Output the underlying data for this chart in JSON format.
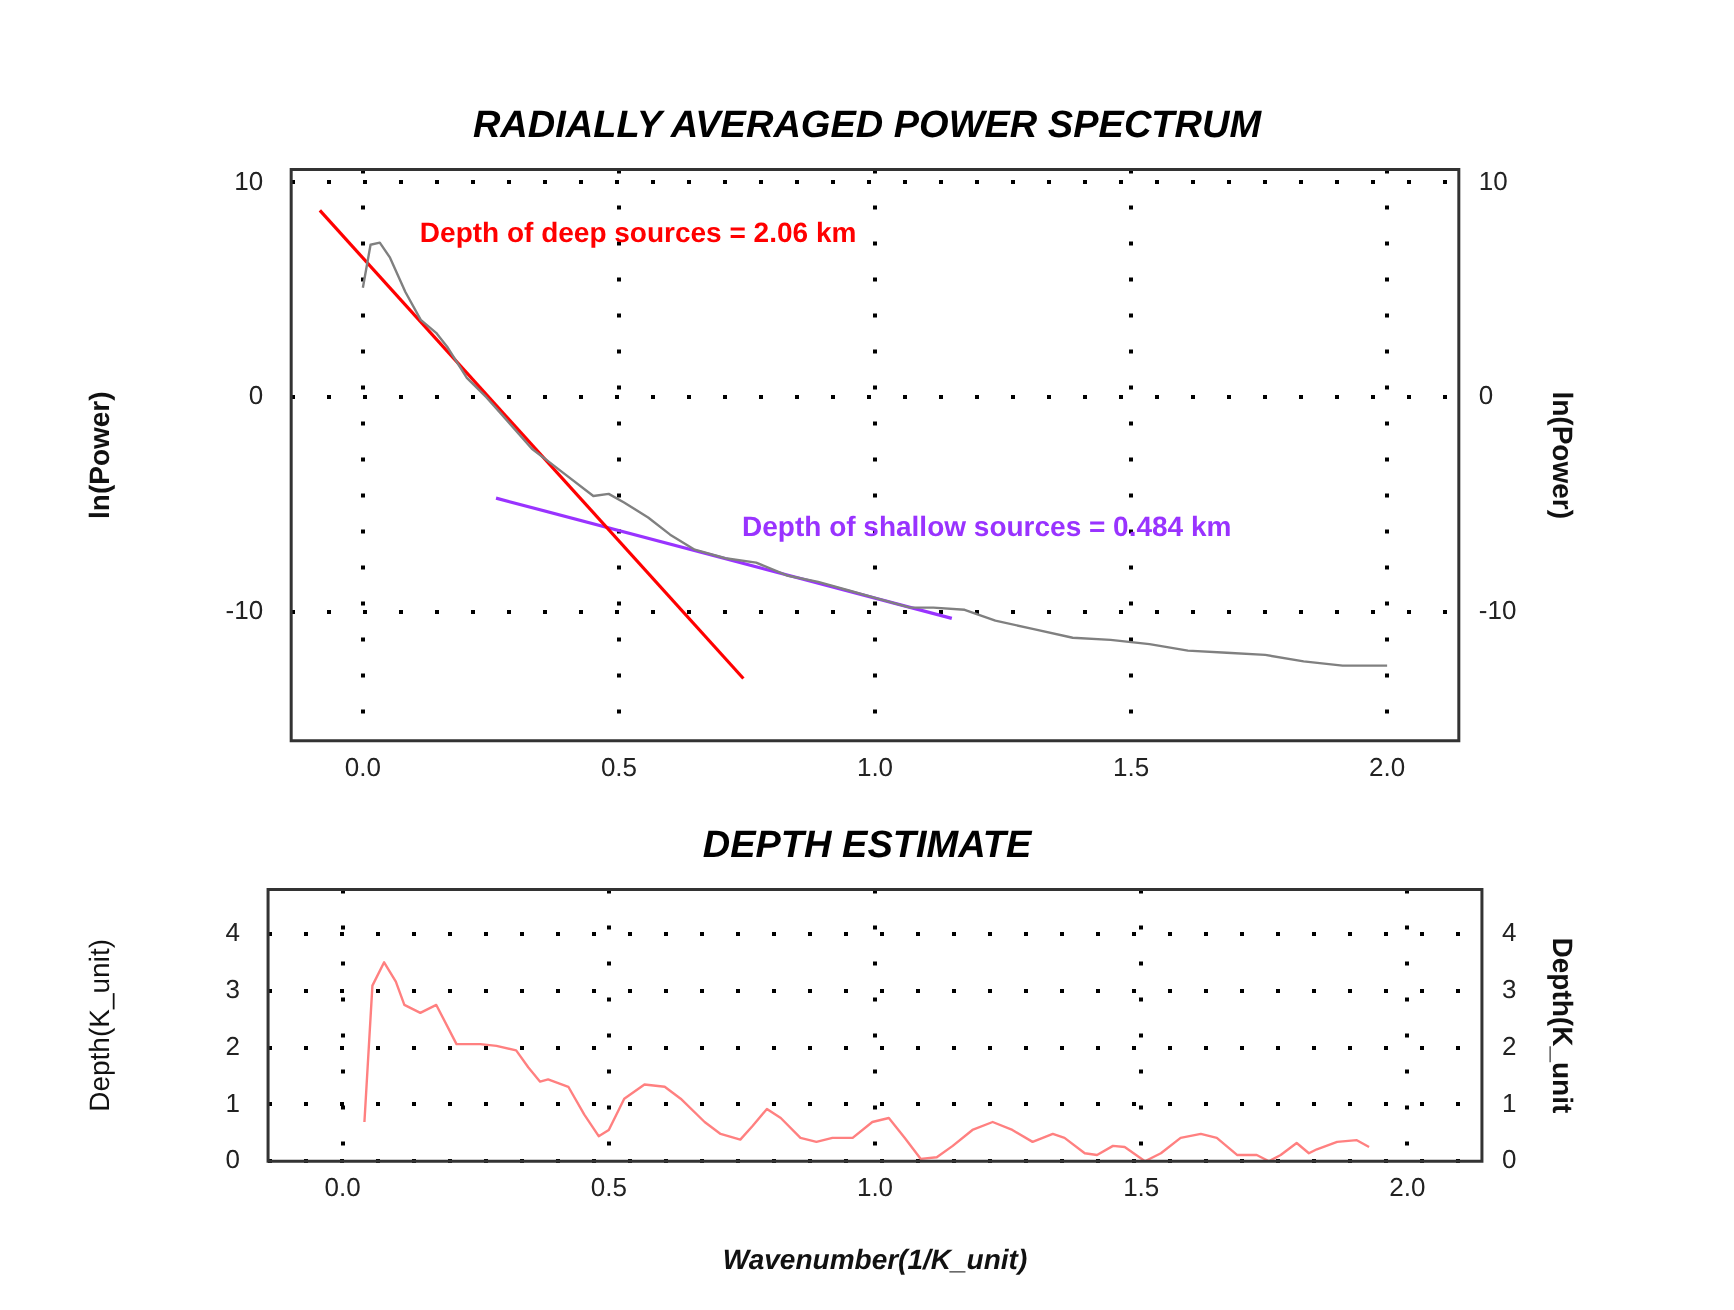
{
  "chart_data": [
    {
      "type": "line",
      "title": "RADIALLY AVERAGED POWER SPECTRUM",
      "ylabel": "ln(Power)",
      "y2label": "ln(Power)",
      "xlim": [
        -0.14,
        2.14
      ],
      "xticks": [
        {
          "value": 0,
          "label": "0.0"
        },
        {
          "value": 0.5,
          "label": "0.5"
        },
        {
          "value": 1,
          "label": "1.0"
        },
        {
          "value": 1.5,
          "label": "1.5"
        },
        {
          "value": 2,
          "label": "2.0"
        }
      ],
      "ylim": [
        -16,
        10.6
      ],
      "yticks": [
        -10,
        0,
        10
      ],
      "y2lim": [
        -16,
        10.6
      ],
      "y2ticks": [
        -10,
        0,
        10
      ],
      "grid": true,
      "legend": false,
      "marker": "none",
      "line_style": "solid",
      "series": [
        {
          "color": "#808080",
          "x": [
            0,
            0.015,
            0.033,
            0.053,
            0.083,
            0.113,
            0.143,
            0.166,
            0.203,
            0.241,
            0.271,
            0.33,
            0.39,
            0.45,
            0.48,
            0.51,
            0.557,
            0.6,
            0.648,
            0.708,
            0.768,
            0.828,
            0.889,
            0.949,
            1.009,
            1.069,
            1.114,
            1.175,
            1.235,
            1.31,
            1.386,
            1.46,
            1.536,
            1.611,
            1.687,
            1.762,
            1.837,
            1.913,
            2.0
          ],
          "values": [
            5.1,
            7.1,
            7.2,
            6.5,
            4.9,
            3.6,
            3.0,
            2.3,
            0.9,
            0,
            -0.8,
            -2.4,
            -3.5,
            -4.6,
            -4.5,
            -4.9,
            -5.6,
            -6.4,
            -7.1,
            -7.5,
            -7.7,
            -8.3,
            -8.6,
            -9.0,
            -9.4,
            -9.8,
            -9.8,
            -9.9,
            -10.4,
            -10.8,
            -11.2,
            -11.3,
            -11.5,
            -11.8,
            -11.9,
            -12.0,
            -12.3,
            -12.5,
            -12.5
          ]
        },
        {
          "color": "#ff0000",
          "x": [
            -0.084,
            0.743
          ],
          "values": [
            8.7,
            -13.1
          ]
        },
        {
          "color": "#9933ff",
          "x": [
            0.26,
            1.15
          ],
          "values": [
            -4.7,
            -10.3
          ]
        }
      ],
      "annotations": [
        "Depth of deep sources = 2.06 km",
        "Depth of shallow sources = 0.484 km"
      ]
    },
    {
      "type": "line",
      "title": "DEPTH ESTIMATE",
      "xlabel": "Wavenumber(1/K_unit)",
      "ylabel": "Depth(K_unit)",
      "y2label": "Depth(K_unit",
      "xlim": [
        -0.14,
        2.14
      ],
      "xticks": [
        {
          "value": 0,
          "label": "0.0"
        },
        {
          "value": 0.5,
          "label": "0.5"
        },
        {
          "value": 1,
          "label": "1.0"
        },
        {
          "value": 1.5,
          "label": "1.5"
        },
        {
          "value": 2,
          "label": "2.0"
        }
      ],
      "ylim": [
        0,
        4.78
      ],
      "yticks": [
        0,
        1,
        2,
        3,
        4
      ],
      "y2lim": [
        0,
        4.78
      ],
      "y2ticks": [
        0,
        1,
        2,
        3,
        4
      ],
      "grid": true,
      "legend": false,
      "marker": "none",
      "line_style": "solid",
      "series": [
        {
          "color": "#ff8080",
          "x": [
            0.041,
            0.056,
            0.078,
            0.1,
            0.116,
            0.146,
            0.176,
            0.214,
            0.259,
            0.289,
            0.326,
            0.349,
            0.371,
            0.386,
            0.424,
            0.454,
            0.481,
            0.5,
            0.529,
            0.567,
            0.605,
            0.635,
            0.68,
            0.71,
            0.747,
            0.77,
            0.797,
            0.823,
            0.86,
            0.89,
            0.92,
            0.958,
            0.995,
            1.026,
            1.056,
            1.086,
            1.116,
            1.146,
            1.183,
            1.221,
            1.258,
            1.296,
            1.334,
            1.356,
            1.394,
            1.417,
            1.447,
            1.469,
            1.507,
            1.537,
            1.574,
            1.612,
            1.642,
            1.68,
            1.717,
            1.74,
            1.762,
            1.792,
            1.815,
            1.83,
            1.868,
            1.905,
            1.928
          ],
          "values": [
            0.69,
            3.09,
            3.5,
            3.16,
            2.75,
            2.61,
            2.75,
            2.06,
            2.06,
            2.03,
            1.95,
            1.65,
            1.4,
            1.44,
            1.31,
            0.82,
            0.44,
            0.55,
            1.1,
            1.35,
            1.31,
            1.1,
            0.69,
            0.48,
            0.38,
            0.62,
            0.92,
            0.76,
            0.41,
            0.34,
            0.41,
            0.41,
            0.69,
            0.76,
            0.41,
            0.04,
            0.07,
            0.27,
            0.55,
            0.69,
            0.55,
            0.34,
            0.48,
            0.41,
            0.14,
            0.11,
            0.27,
            0.25,
            0,
            0.14,
            0.41,
            0.48,
            0.41,
            0.11,
            0.11,
            0,
            0.11,
            0.32,
            0.14,
            0.21,
            0.34,
            0.37,
            0.25
          ]
        }
      ]
    }
  ]
}
